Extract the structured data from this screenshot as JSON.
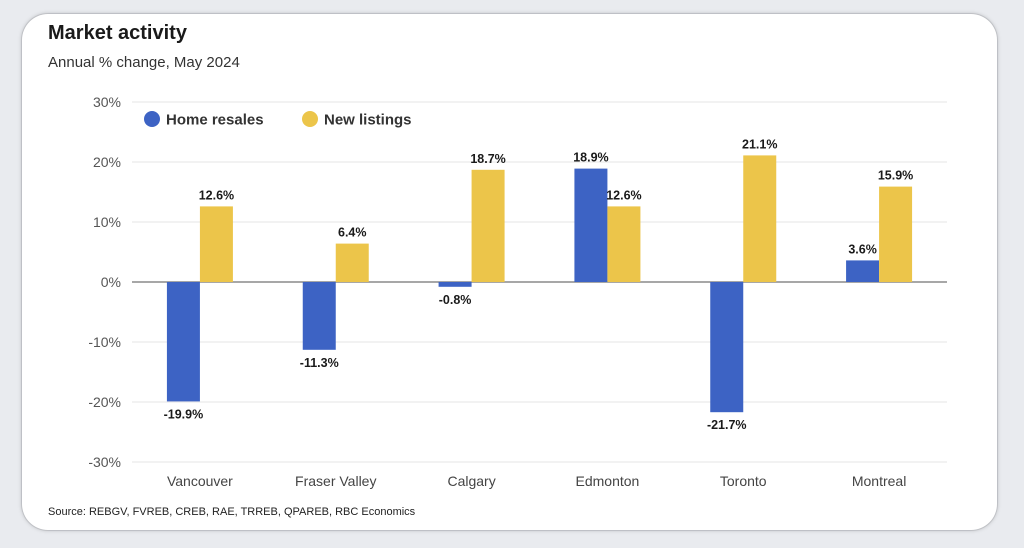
{
  "chart_data": {
    "type": "bar",
    "title": "Market activity",
    "subtitle": "Annual % change, May 2024",
    "source": "Source: REBGV, FVREB, CREB, RAE, TRREB, QPAREB, RBC Economics",
    "categories": [
      "Vancouver",
      "Fraser Valley",
      "Calgary",
      "Edmonton",
      "Toronto",
      "Montreal"
    ],
    "series": [
      {
        "name": "Home resales",
        "color": "#3d63c4",
        "values": [
          -19.9,
          -11.3,
          -0.8,
          18.9,
          -21.7,
          3.6
        ],
        "labels": [
          "-19.9%",
          "-11.3%",
          "-0.8%",
          "18.9%",
          "-21.7%",
          "3.6%"
        ]
      },
      {
        "name": "New listings",
        "color": "#ecc54a",
        "values": [
          12.6,
          6.4,
          18.7,
          12.6,
          21.1,
          15.9
        ],
        "labels": [
          "12.6%",
          "6.4%",
          "18.7%",
          "12.6%",
          "21.1%",
          "15.9%"
        ]
      }
    ],
    "ylim": [
      -30,
      30
    ],
    "yticks": [
      30,
      20,
      10,
      0,
      -10,
      -20,
      -30
    ],
    "ytick_labels": [
      "30%",
      "20%",
      "10%",
      "0%",
      "-10%",
      "-20%",
      "-30%"
    ],
    "grid": true,
    "legend_position": "top-left"
  }
}
